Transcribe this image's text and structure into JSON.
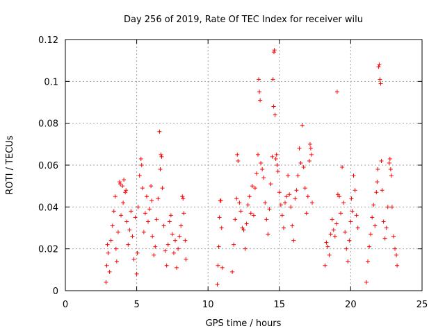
{
  "chart_data": {
    "type": "scatter",
    "title": "Day 256 of 2019, Rate Of TEC Index for receiver wilu",
    "xlabel": "GPS time / hours",
    "ylabel": "ROTI / TECUs",
    "xlim": [
      0,
      25
    ],
    "ylim": [
      0,
      0.12
    ],
    "xticks": [
      "0",
      "5",
      "10",
      "15",
      "20",
      "25"
    ],
    "yticks": [
      "0",
      "0.02",
      "0.04",
      "0.06",
      "0.08",
      "0.1",
      "0.12"
    ],
    "grid": true,
    "marker": "+",
    "color": "#ff0000",
    "series": [
      {
        "name": "ROTI",
        "points": [
          [
            2.85,
            0.004
          ],
          [
            2.9,
            0.012
          ],
          [
            2.95,
            0.022
          ],
          [
            3.0,
            0.018
          ],
          [
            3.1,
            0.009
          ],
          [
            3.2,
            0.024
          ],
          [
            3.3,
            0.031
          ],
          [
            3.4,
            0.038
          ],
          [
            3.5,
            0.045
          ],
          [
            3.55,
            0.02
          ],
          [
            3.6,
            0.014
          ],
          [
            3.7,
            0.028
          ],
          [
            3.8,
            0.052
          ],
          [
            3.85,
            0.051
          ],
          [
            3.9,
            0.036
          ],
          [
            4.0,
            0.05
          ],
          [
            4.05,
            0.042
          ],
          [
            4.1,
            0.053
          ],
          [
            4.2,
            0.047
          ],
          [
            4.25,
            0.048
          ],
          [
            4.3,
            0.033
          ],
          [
            4.4,
            0.022
          ],
          [
            4.5,
            0.029
          ],
          [
            4.6,
            0.038
          ],
          [
            4.7,
            0.026
          ],
          [
            4.8,
            0.015
          ],
          [
            4.9,
            0.035
          ],
          [
            5.0,
            0.008
          ],
          [
            5.05,
            0.018
          ],
          [
            5.1,
            0.04
          ],
          [
            5.2,
            0.055
          ],
          [
            5.3,
            0.063
          ],
          [
            5.35,
            0.06
          ],
          [
            5.4,
            0.049
          ],
          [
            5.5,
            0.028
          ],
          [
            5.6,
            0.037
          ],
          [
            5.7,
            0.045
          ],
          [
            5.8,
            0.033
          ],
          [
            5.9,
            0.039
          ],
          [
            6.0,
            0.05
          ],
          [
            6.05,
            0.043
          ],
          [
            6.1,
            0.026
          ],
          [
            6.2,
            0.017
          ],
          [
            6.3,
            0.021
          ],
          [
            6.4,
            0.034
          ],
          [
            6.5,
            0.044
          ],
          [
            6.6,
            0.076
          ],
          [
            6.65,
            0.058
          ],
          [
            6.7,
            0.065
          ],
          [
            6.75,
            0.064
          ],
          [
            6.8,
            0.049
          ],
          [
            6.9,
            0.031
          ],
          [
            7.0,
            0.019
          ],
          [
            7.1,
            0.012
          ],
          [
            7.2,
            0.022
          ],
          [
            7.3,
            0.033
          ],
          [
            7.4,
            0.036
          ],
          [
            7.5,
            0.027
          ],
          [
            7.6,
            0.018
          ],
          [
            7.7,
            0.024
          ],
          [
            7.8,
            0.011
          ],
          [
            7.9,
            0.02
          ],
          [
            8.0,
            0.026
          ],
          [
            8.1,
            0.031
          ],
          [
            8.2,
            0.045
          ],
          [
            8.25,
            0.044
          ],
          [
            8.3,
            0.037
          ],
          [
            8.4,
            0.024
          ],
          [
            8.45,
            0.015
          ],
          [
            10.65,
            0.003
          ],
          [
            10.7,
            0.012
          ],
          [
            10.75,
            0.021
          ],
          [
            10.8,
            0.035
          ],
          [
            10.85,
            0.043
          ],
          [
            10.9,
            0.043
          ],
          [
            10.95,
            0.03
          ],
          [
            11.0,
            0.011
          ],
          [
            11.7,
            0.009
          ],
          [
            11.8,
            0.022
          ],
          [
            11.9,
            0.034
          ],
          [
            12.0,
            0.044
          ],
          [
            12.05,
            0.065
          ],
          [
            12.1,
            0.062
          ],
          [
            12.2,
            0.042
          ],
          [
            12.3,
            0.038
          ],
          [
            12.4,
            0.03
          ],
          [
            12.5,
            0.029
          ],
          [
            12.6,
            0.02
          ],
          [
            12.7,
            0.032
          ],
          [
            12.8,
            0.041
          ],
          [
            12.9,
            0.045
          ],
          [
            13.0,
            0.037
          ],
          [
            13.1,
            0.05
          ],
          [
            13.2,
            0.036
          ],
          [
            13.3,
            0.049
          ],
          [
            13.4,
            0.056
          ],
          [
            13.5,
            0.065
          ],
          [
            13.55,
            0.101
          ],
          [
            13.6,
            0.095
          ],
          [
            13.65,
            0.091
          ],
          [
            13.7,
            0.061
          ],
          [
            13.8,
            0.058
          ],
          [
            13.9,
            0.054
          ],
          [
            14.0,
            0.042
          ],
          [
            14.1,
            0.034
          ],
          [
            14.2,
            0.027
          ],
          [
            14.3,
            0.039
          ],
          [
            14.4,
            0.051
          ],
          [
            14.5,
            0.064
          ],
          [
            14.55,
            0.101
          ],
          [
            14.6,
            0.088
          ],
          [
            14.62,
            0.114
          ],
          [
            14.65,
            0.115
          ],
          [
            14.7,
            0.084
          ],
          [
            14.75,
            0.063
          ],
          [
            14.8,
            0.065
          ],
          [
            14.85,
            0.06
          ],
          [
            14.9,
            0.057
          ],
          [
            15.0,
            0.047
          ],
          [
            15.1,
            0.041
          ],
          [
            15.2,
            0.036
          ],
          [
            15.3,
            0.03
          ],
          [
            15.4,
            0.042
          ],
          [
            15.5,
            0.045
          ],
          [
            15.6,
            0.055
          ],
          [
            15.7,
            0.046
          ],
          [
            15.8,
            0.04
          ],
          [
            15.9,
            0.031
          ],
          [
            16.0,
            0.024
          ],
          [
            16.1,
            0.044
          ],
          [
            16.2,
            0.048
          ],
          [
            16.3,
            0.055
          ],
          [
            16.4,
            0.068
          ],
          [
            16.5,
            0.061
          ],
          [
            16.6,
            0.079
          ],
          [
            16.7,
            0.059
          ],
          [
            16.8,
            0.049
          ],
          [
            16.9,
            0.037
          ],
          [
            17.0,
            0.045
          ],
          [
            17.1,
            0.062
          ],
          [
            17.15,
            0.07
          ],
          [
            17.2,
            0.068
          ],
          [
            17.25,
            0.065
          ],
          [
            17.3,
            0.042
          ],
          [
            18.2,
            0.012
          ],
          [
            18.3,
            0.023
          ],
          [
            18.4,
            0.021
          ],
          [
            18.5,
            0.017
          ],
          [
            18.6,
            0.027
          ],
          [
            18.7,
            0.034
          ],
          [
            18.8,
            0.029
          ],
          [
            18.9,
            0.026
          ],
          [
            19.0,
            0.032
          ],
          [
            19.05,
            0.095
          ],
          [
            19.1,
            0.046
          ],
          [
            19.2,
            0.045
          ],
          [
            19.3,
            0.037
          ],
          [
            19.4,
            0.059
          ],
          [
            19.5,
            0.042
          ],
          [
            19.6,
            0.028
          ],
          [
            19.7,
            0.02
          ],
          [
            19.8,
            0.014
          ],
          [
            19.9,
            0.024
          ],
          [
            20.0,
            0.033
          ],
          [
            20.05,
            0.044
          ],
          [
            20.1,
            0.038
          ],
          [
            20.2,
            0.055
          ],
          [
            20.3,
            0.048
          ],
          [
            20.4,
            0.036
          ],
          [
            20.5,
            0.03
          ],
          [
            21.1,
            0.004
          ],
          [
            21.2,
            0.014
          ],
          [
            21.3,
            0.021
          ],
          [
            21.4,
            0.027
          ],
          [
            21.5,
            0.035
          ],
          [
            21.6,
            0.041
          ],
          [
            21.7,
            0.031
          ],
          [
            21.8,
            0.047
          ],
          [
            21.85,
            0.052
          ],
          [
            21.9,
            0.058
          ],
          [
            21.95,
            0.107
          ],
          [
            22.0,
            0.108
          ],
          [
            22.05,
            0.101
          ],
          [
            22.1,
            0.099
          ],
          [
            22.15,
            0.062
          ],
          [
            22.2,
            0.048
          ],
          [
            22.3,
            0.033
          ],
          [
            22.4,
            0.025
          ],
          [
            22.5,
            0.03
          ],
          [
            22.6,
            0.04
          ],
          [
            22.7,
            0.061
          ],
          [
            22.75,
            0.063
          ],
          [
            22.8,
            0.058
          ],
          [
            22.85,
            0.055
          ],
          [
            22.9,
            0.04
          ],
          [
            23.0,
            0.026
          ],
          [
            23.1,
            0.02
          ],
          [
            23.2,
            0.017
          ],
          [
            23.25,
            0.012
          ]
        ]
      }
    ]
  }
}
